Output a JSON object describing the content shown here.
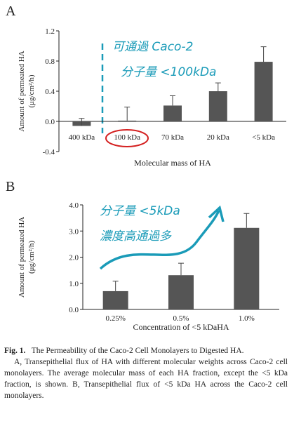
{
  "chart_data": [
    {
      "type": "bar",
      "panel": "A",
      "y_label": [
        "Amount of permeated HA",
        "(μg/cm²/h)"
      ],
      "x_label": "Molecular mass of HA",
      "categories": [
        "400 kDa",
        "100 kDa",
        "70 kDa",
        "20 kDa",
        "<5 kDa"
      ],
      "values": [
        -0.06,
        0.01,
        0.21,
        0.4,
        0.79
      ],
      "errors": [
        0.1,
        0.18,
        0.13,
        0.11,
        0.2
      ],
      "color": "#555555",
      "ylim": [
        -0.4,
        1.2
      ],
      "yticks": [
        -0.4,
        {
          "value": 0,
          "label": "0.0"
        },
        0.4,
        0.8,
        1.2
      ],
      "annotations": [
        "可通過 Caco-2",
        "分子量 <100kDa"
      ]
    },
    {
      "type": "bar",
      "panel": "B",
      "y_label": [
        "Amount of permeated HA",
        "(μg/cm²/h)"
      ],
      "x_label": "Concentration of <5 kDaHA",
      "categories": [
        "0.25%",
        "0.5%",
        "1.0%"
      ],
      "values": [
        0.7,
        1.31,
        3.12
      ],
      "errors": [
        0.38,
        0.46,
        0.55
      ],
      "color": "#555555",
      "ylim": [
        0,
        4
      ],
      "yticks": [
        {
          "value": 0,
          "label": "0.0"
        },
        {
          "value": 1,
          "label": "1.0"
        },
        {
          "value": 2,
          "label": "2.0"
        },
        {
          "value": 3,
          "label": "3.0"
        },
        {
          "value": 4,
          "label": "4.0"
        }
      ],
      "annotations": [
        "分子量 <5kDa",
        "濃度高通過多"
      ]
    }
  ],
  "caption": {
    "label": "Fig. 1.",
    "title": "The Permeability of the Caco-2 Cell Monolayers to Digested HA.",
    "body": "A, Transepithelial flux of HA with different molecular weights across Caco-2 cell monolayers. The average molecular mass of each HA fraction, except the <5 kDa fraction, is shown. B, Transepithelial flux of <5 kDa HA across the Caco-2 cell monolayers."
  }
}
